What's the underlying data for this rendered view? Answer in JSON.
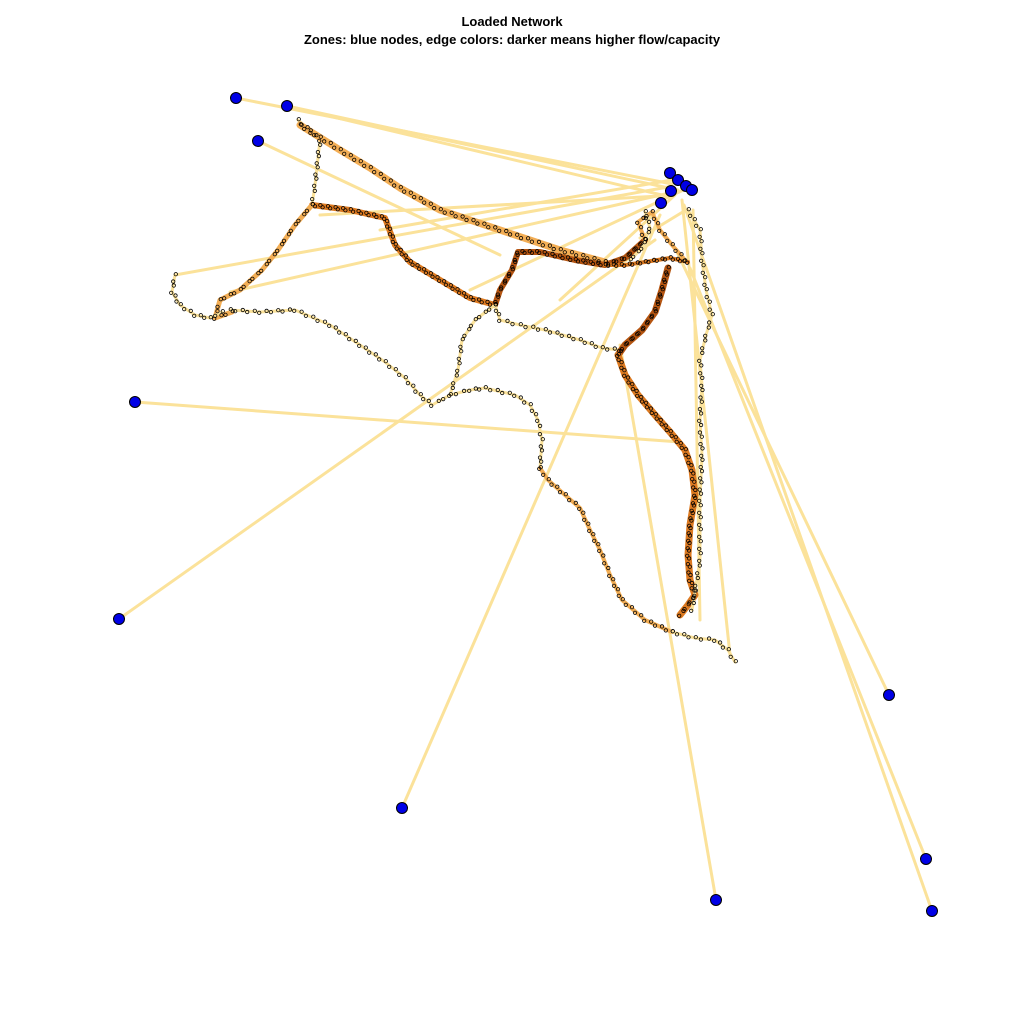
{
  "figure": {
    "title": "Loaded Network",
    "subtitle": "Zones: blue nodes, edge colors: darker means higher flow/capacity"
  },
  "colors": {
    "zone_node_fill": "#0000e6",
    "network_node_stroke": "#000000",
    "low_flow_edge": "#fbe29a",
    "medium_flow_edge": "#f3ae55",
    "high_flow_edge": "#dd7a21",
    "very_high_flow_edge": "#b55511"
  }
}
